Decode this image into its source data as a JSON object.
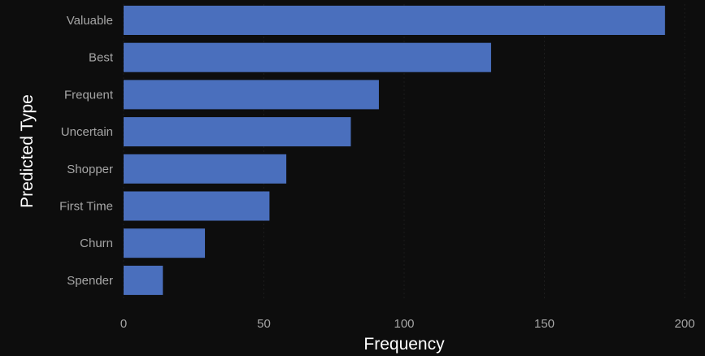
{
  "chart_data": {
    "type": "bar",
    "orientation": "horizontal",
    "title": "",
    "xlabel": "Frequency",
    "ylabel": "Predicted Type",
    "categories": [
      "Valuable",
      "Best",
      "Frequent",
      "Uncertain",
      "Shopper",
      "First Time",
      "Churn",
      "Spender"
    ],
    "values": [
      193,
      131,
      91,
      81,
      58,
      52,
      29,
      14
    ],
    "xlim": [
      0,
      200
    ],
    "xticks": [
      "0",
      "50",
      "100",
      "150",
      "200"
    ],
    "grid": false,
    "legend": "none",
    "bar_color": "#4a6fbd",
    "background_color": "#0d0d0d"
  }
}
